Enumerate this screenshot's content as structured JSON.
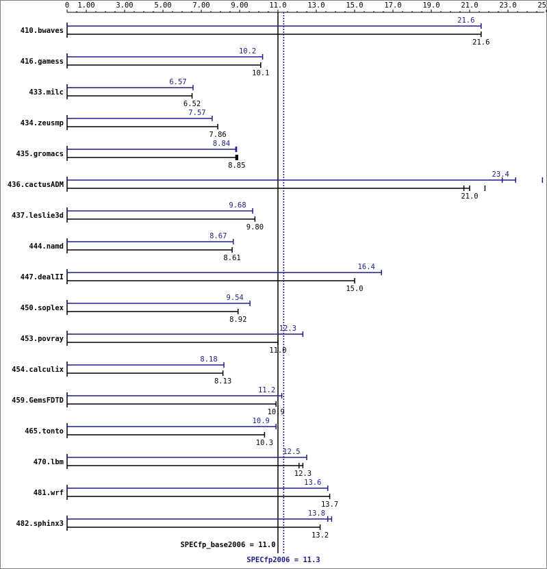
{
  "chart_data": {
    "type": "bar",
    "orientation": "horizontal",
    "x_ticks": [
      "0",
      "1.00",
      "3.00",
      "5.00",
      "7.00",
      "9.00",
      "11.0",
      "13.0",
      "15.0",
      "17.0",
      "19.0",
      "21.0",
      "23.0",
      "25.0"
    ],
    "x_tick_values": [
      0,
      1,
      3,
      5,
      7,
      9,
      11,
      13,
      15,
      17,
      19,
      21,
      23,
      25
    ],
    "xlim": [
      0,
      25
    ],
    "categories": [
      "410.bwaves",
      "416.gamess",
      "433.milc",
      "434.zeusmp",
      "435.gromacs",
      "436.cactusADM",
      "437.leslie3d",
      "444.namd",
      "447.dealII",
      "450.soplex",
      "453.povray",
      "454.calculix",
      "459.GemsFDTD",
      "465.tonto",
      "470.lbm",
      "481.wrf",
      "482.sphinx3"
    ],
    "series": [
      {
        "name": "peak",
        "color": "#1c1c8c",
        "values": [
          21.6,
          10.2,
          6.57,
          7.57,
          8.84,
          23.4,
          9.68,
          8.67,
          16.4,
          9.54,
          12.3,
          8.18,
          11.2,
          10.9,
          12.5,
          13.6,
          13.8
        ],
        "labels": [
          "21.6",
          "10.2",
          "6.57",
          "7.57",
          "8.84",
          "23.4",
          "9.68",
          "8.67",
          "16.4",
          "9.54",
          "12.3",
          "8.18",
          "11.2",
          "10.9",
          "12.5",
          "13.6",
          "13.8"
        ],
        "run_marks": [
          [
            21.6
          ],
          [
            10.2
          ],
          [
            6.57
          ],
          [
            7.57
          ],
          [
            8.8,
            8.84
          ],
          [
            22.7,
            23.4,
            24.8
          ],
          [
            9.68
          ],
          [
            8.67
          ],
          [
            16.4
          ],
          [
            9.54
          ],
          [
            12.3
          ],
          [
            8.18
          ],
          [
            11.2
          ],
          [
            10.9
          ],
          [
            12.5
          ],
          [
            13.6
          ],
          [
            13.6,
            13.8
          ]
        ]
      },
      {
        "name": "base",
        "color": "#000000",
        "values": [
          21.6,
          10.1,
          6.52,
          7.86,
          8.85,
          21.0,
          9.8,
          8.61,
          15.0,
          8.92,
          11.0,
          8.13,
          10.9,
          10.3,
          12.3,
          13.7,
          13.2
        ],
        "labels": [
          "21.6",
          "10.1",
          "6.52",
          "7.86",
          "8.85",
          "21.0",
          "9.80",
          "8.61",
          "15.0",
          "8.92",
          "11.0",
          "8.13",
          "10.9",
          "10.3",
          "12.3",
          "13.7",
          "13.2"
        ],
        "run_marks": [
          [
            21.6
          ],
          [
            10.1
          ],
          [
            6.52
          ],
          [
            7.86
          ],
          [
            8.8,
            8.85,
            8.9
          ],
          [
            20.7,
            21.0,
            21.8
          ],
          [
            9.8
          ],
          [
            8.61
          ],
          [
            15.0
          ],
          [
            8.92
          ],
          [
            11.0
          ],
          [
            8.13
          ],
          [
            10.9
          ],
          [
            10.3
          ],
          [
            12.1,
            12.3
          ],
          [
            13.7
          ],
          [
            13.2
          ]
        ]
      }
    ],
    "reference_lines": {
      "base": {
        "value": 11.0,
        "label": "SPECfp_base2006 = 11.0",
        "color": "#000000"
      },
      "peak": {
        "value": 11.3,
        "label": "SPECfp2006 = 11.3",
        "color": "#1c1c8c"
      }
    },
    "title": "",
    "xlabel": "",
    "ylabel": "",
    "grid": false,
    "legend": "none"
  }
}
